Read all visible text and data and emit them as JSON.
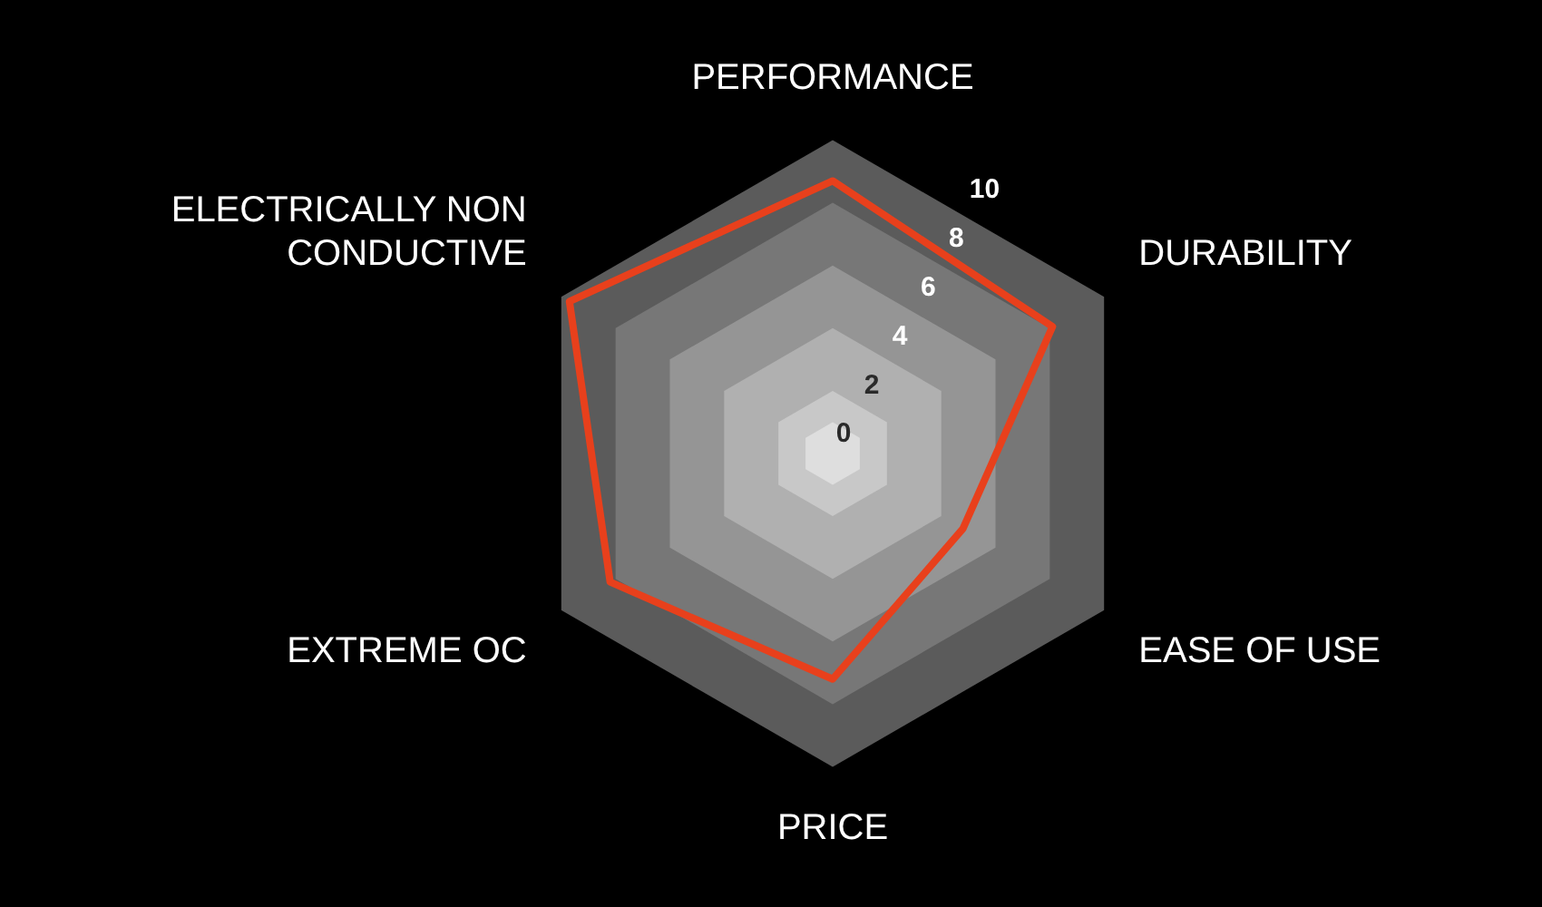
{
  "chart_data": {
    "type": "radar",
    "categories": [
      "PERFORMANCE",
      "DURABILITY",
      "EASE OF USE",
      "PRICE",
      "EXTREME OC",
      "ELECTRICALLY NON CONDUCTIVE"
    ],
    "series": [
      {
        "color": "#e8401c",
        "values": [
          8.7,
          8.1,
          4.8,
          7.2,
          8.2,
          9.7
        ]
      }
    ],
    "ylim": [
      0,
      10
    ],
    "yticks": [
      0,
      2,
      4,
      6,
      8,
      10
    ],
    "grid": true,
    "legend": false,
    "marker": "none"
  }
}
